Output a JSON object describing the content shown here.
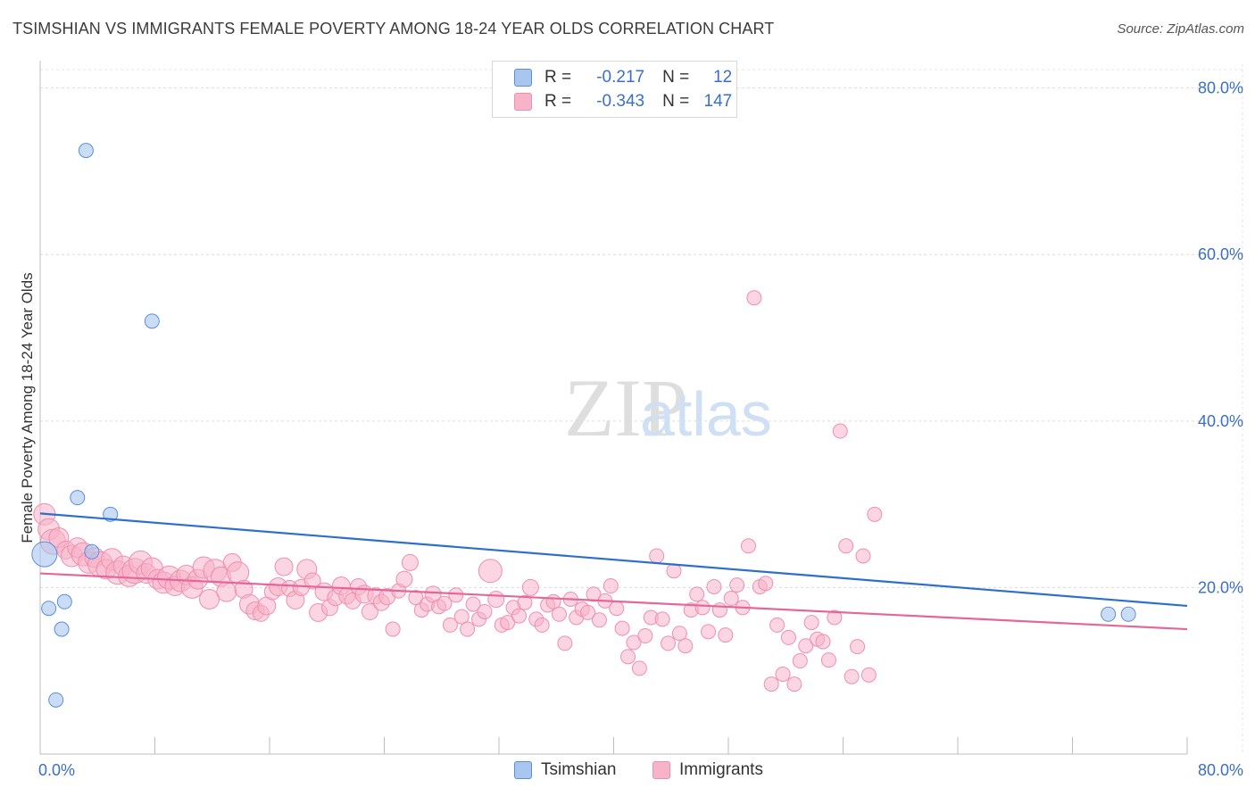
{
  "title": "TSIMSHIAN VS IMMIGRANTS FEMALE POVERTY AMONG 18-24 YEAR OLDS CORRELATION CHART",
  "source": "Source: ZipAtlas.com",
  "watermark": {
    "zip": "ZIP",
    "atlas": "atlas"
  },
  "legend": {
    "rows": [
      {
        "r_label": "R =",
        "r_value": "-0.217",
        "n_label": "N =",
        "n_value": "12"
      },
      {
        "r_label": "R =",
        "r_value": "-0.343",
        "n_label": "N =",
        "n_value": "147"
      }
    ]
  },
  "bottom_legend": [
    {
      "label": "Tsimshian"
    },
    {
      "label": "Immigrants"
    }
  ],
  "chart_data": {
    "type": "scatter",
    "ylabel": "Female Poverty Among 18-24 Year Olds",
    "xlabel": "",
    "xlim": [
      0,
      80
    ],
    "ylim": [
      0,
      82
    ],
    "x_tick_labels": [
      "0.0%",
      "80.0%"
    ],
    "y_ticks": [
      20,
      40,
      60,
      80
    ],
    "y_tick_labels": [
      "20.0%",
      "40.0%",
      "60.0%",
      "80.0%"
    ],
    "grid": true,
    "colors": {
      "tsimshian_fill": "#a8c6f0",
      "tsimshian_stroke": "#5a8fd8",
      "tsimshian_line": "#2f6fcc",
      "immigrants_fill": "#f7b3c8",
      "immigrants_stroke": "#ee8fae",
      "immigrants_line": "#e4679a",
      "axis_label": "#3a6fc7"
    },
    "series": [
      {
        "name": "Tsimshian",
        "trend": {
          "x": [
            0,
            80
          ],
          "y": [
            28.9,
            17.8
          ]
        },
        "points": [
          [
            0.3,
            24.0,
            14
          ],
          [
            0.6,
            17.5,
            8
          ],
          [
            1.1,
            6.5,
            8
          ],
          [
            1.5,
            15.0,
            8
          ],
          [
            1.7,
            18.3,
            8
          ],
          [
            2.6,
            30.8,
            8
          ],
          [
            3.2,
            72.5,
            8
          ],
          [
            3.6,
            24.3,
            8
          ],
          [
            4.9,
            28.8,
            8
          ],
          [
            7.8,
            52.0,
            8
          ],
          [
            74.5,
            16.8,
            8
          ],
          [
            75.9,
            16.8,
            8
          ]
        ]
      },
      {
        "name": "Immigrants",
        "trend": {
          "x": [
            0,
            80
          ],
          "y": [
            21.7,
            15.0
          ]
        },
        "points": [
          [
            0.3,
            28.8,
            12
          ],
          [
            0.6,
            27.0,
            12
          ],
          [
            0.9,
            25.5,
            14
          ],
          [
            1.3,
            26.0,
            11
          ],
          [
            1.8,
            24.5,
            10
          ],
          [
            2.2,
            23.8,
            12
          ],
          [
            2.6,
            24.8,
            11
          ],
          [
            3.0,
            24.0,
            13
          ],
          [
            3.4,
            23.0,
            12
          ],
          [
            3.8,
            23.6,
            11
          ],
          [
            4.2,
            22.8,
            14
          ],
          [
            4.6,
            22.2,
            11
          ],
          [
            5.0,
            23.4,
            12
          ],
          [
            5.4,
            21.8,
            13
          ],
          [
            5.8,
            22.6,
            11
          ],
          [
            6.2,
            21.4,
            12
          ],
          [
            6.6,
            22.0,
            14
          ],
          [
            7.0,
            23.0,
            13
          ],
          [
            7.4,
            21.7,
            11
          ],
          [
            7.8,
            22.3,
            12
          ],
          [
            8.2,
            21.0,
            11
          ],
          [
            8.6,
            20.6,
            12
          ],
          [
            9.0,
            21.2,
            13
          ],
          [
            9.4,
            20.2,
            11
          ],
          [
            9.8,
            20.8,
            12
          ],
          [
            10.2,
            21.5,
            11
          ],
          [
            10.6,
            20.0,
            12
          ],
          [
            11.0,
            21.0,
            11
          ],
          [
            11.4,
            22.4,
            12
          ],
          [
            11.8,
            18.6,
            11
          ],
          [
            12.2,
            22.0,
            13
          ],
          [
            12.6,
            21.3,
            11
          ],
          [
            13.0,
            19.5,
            11
          ],
          [
            13.4,
            23.0,
            10
          ],
          [
            13.8,
            21.8,
            12
          ],
          [
            14.2,
            19.8,
            10
          ],
          [
            14.6,
            18.0,
            11
          ],
          [
            15.0,
            17.2,
            10
          ],
          [
            15.4,
            16.9,
            9
          ],
          [
            15.8,
            17.8,
            10
          ],
          [
            16.2,
            19.5,
            9
          ],
          [
            16.6,
            20.1,
            10
          ],
          [
            17.0,
            22.5,
            10
          ],
          [
            17.4,
            19.9,
            9
          ],
          [
            17.8,
            18.5,
            10
          ],
          [
            18.2,
            20.0,
            9
          ],
          [
            18.6,
            22.2,
            11
          ],
          [
            19.0,
            20.8,
            9
          ],
          [
            19.4,
            17.0,
            10
          ],
          [
            19.8,
            19.5,
            10
          ],
          [
            20.2,
            17.6,
            9
          ],
          [
            20.6,
            18.8,
            9
          ],
          [
            21.0,
            20.2,
            10
          ],
          [
            21.4,
            19.0,
            9
          ],
          [
            21.8,
            18.4,
            9
          ],
          [
            22.2,
            20.1,
            9
          ],
          [
            22.6,
            19.2,
            10
          ],
          [
            23.0,
            17.1,
            9
          ],
          [
            23.4,
            19.0,
            9
          ],
          [
            23.8,
            18.2,
            9
          ],
          [
            24.2,
            18.9,
            9
          ],
          [
            24.6,
            15.0,
            8
          ],
          [
            25.0,
            19.6,
            8
          ],
          [
            25.4,
            21.0,
            9
          ],
          [
            25.8,
            23.0,
            9
          ],
          [
            26.2,
            18.8,
            8
          ],
          [
            26.6,
            17.3,
            8
          ],
          [
            27.0,
            18.0,
            8
          ],
          [
            27.4,
            19.2,
            9
          ],
          [
            27.8,
            17.7,
            8
          ],
          [
            28.2,
            18.1,
            8
          ],
          [
            28.6,
            15.5,
            8
          ],
          [
            29.0,
            19.1,
            8
          ],
          [
            29.4,
            16.5,
            8
          ],
          [
            29.8,
            15.0,
            8
          ],
          [
            30.2,
            18.0,
            8
          ],
          [
            30.6,
            16.2,
            8
          ],
          [
            31.0,
            17.1,
            8
          ],
          [
            31.4,
            22.0,
            13
          ],
          [
            31.8,
            18.6,
            9
          ],
          [
            32.2,
            15.5,
            8
          ],
          [
            32.6,
            15.8,
            8
          ],
          [
            33.0,
            17.6,
            8
          ],
          [
            33.4,
            16.6,
            8
          ],
          [
            33.8,
            18.2,
            8
          ],
          [
            34.2,
            20.0,
            9
          ],
          [
            34.6,
            16.2,
            8
          ],
          [
            35.0,
            15.5,
            8
          ],
          [
            35.4,
            17.9,
            8
          ],
          [
            35.8,
            18.3,
            8
          ],
          [
            36.2,
            16.8,
            8
          ],
          [
            36.6,
            13.3,
            8
          ],
          [
            37.0,
            18.6,
            8
          ],
          [
            37.4,
            16.4,
            8
          ],
          [
            37.8,
            17.4,
            8
          ],
          [
            38.2,
            17.0,
            8
          ],
          [
            38.6,
            19.2,
            8
          ],
          [
            39.0,
            16.1,
            8
          ],
          [
            39.4,
            18.4,
            8
          ],
          [
            39.8,
            20.2,
            8
          ],
          [
            40.2,
            17.5,
            8
          ],
          [
            40.6,
            15.1,
            8
          ],
          [
            41.0,
            11.7,
            8
          ],
          [
            41.4,
            13.4,
            8
          ],
          [
            41.8,
            10.3,
            8
          ],
          [
            42.2,
            14.2,
            8
          ],
          [
            42.6,
            16.4,
            8
          ],
          [
            43.0,
            23.8,
            8
          ],
          [
            43.4,
            16.2,
            8
          ],
          [
            43.8,
            13.3,
            8
          ],
          [
            44.2,
            22.0,
            8
          ],
          [
            44.6,
            14.5,
            8
          ],
          [
            45.0,
            13.0,
            8
          ],
          [
            45.4,
            17.3,
            8
          ],
          [
            45.8,
            19.2,
            8
          ],
          [
            46.2,
            17.6,
            8
          ],
          [
            46.6,
            14.7,
            8
          ],
          [
            47.0,
            20.1,
            8
          ],
          [
            47.4,
            17.3,
            8
          ],
          [
            47.8,
            14.3,
            8
          ],
          [
            48.2,
            18.7,
            8
          ],
          [
            48.6,
            20.3,
            8
          ],
          [
            49.0,
            17.6,
            8
          ],
          [
            49.4,
            25.0,
            8
          ],
          [
            49.8,
            54.8,
            8
          ],
          [
            50.2,
            20.1,
            8
          ],
          [
            50.6,
            20.5,
            8
          ],
          [
            51.0,
            8.4,
            8
          ],
          [
            51.4,
            15.5,
            8
          ],
          [
            51.8,
            9.6,
            8
          ],
          [
            52.2,
            14.0,
            8
          ],
          [
            52.6,
            8.4,
            8
          ],
          [
            53.0,
            11.2,
            8
          ],
          [
            53.4,
            13.0,
            8
          ],
          [
            53.8,
            15.8,
            8
          ],
          [
            54.2,
            13.8,
            8
          ],
          [
            54.6,
            13.5,
            8
          ],
          [
            55.0,
            11.3,
            8
          ],
          [
            55.4,
            16.4,
            8
          ],
          [
            55.8,
            38.8,
            8
          ],
          [
            56.2,
            25.0,
            8
          ],
          [
            56.6,
            9.3,
            8
          ],
          [
            57.0,
            12.9,
            8
          ],
          [
            57.4,
            23.8,
            8
          ],
          [
            57.8,
            9.5,
            8
          ],
          [
            58.2,
            28.8,
            8
          ]
        ]
      }
    ]
  }
}
